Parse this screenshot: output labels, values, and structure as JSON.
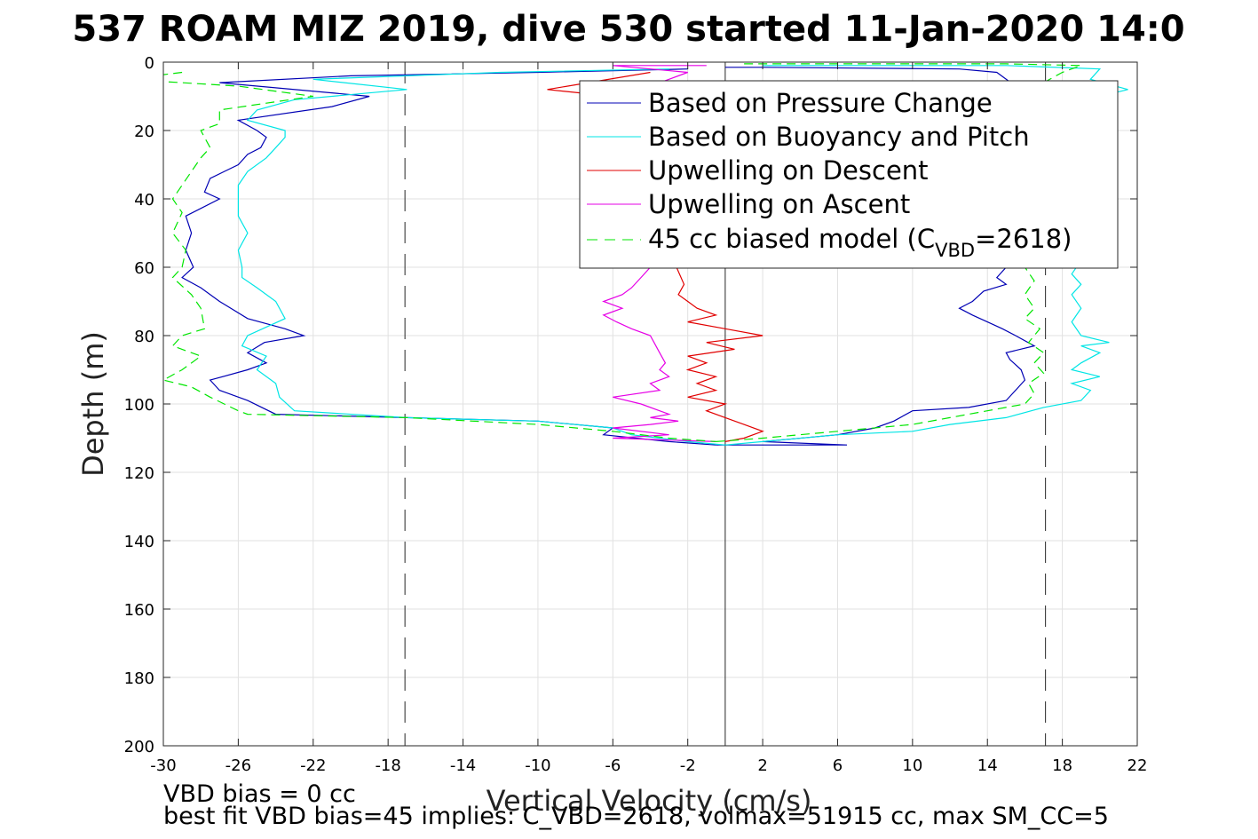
{
  "chart_data": {
    "type": "line",
    "title": "537 ROAM MIZ 2019, dive 530 started 11-Jan-2020 14:0",
    "xlabel": "Vertical Velocity (cm/s)",
    "ylabel": "Depth (m)",
    "xlim": [
      -30,
      22
    ],
    "ylim": [
      0,
      200
    ],
    "y_reversed": true,
    "grid": true,
    "legend_position": "top-right",
    "x_ticks": [
      "-30",
      "-26",
      "-22",
      "-18",
      "-14",
      "-10",
      "-6",
      "-2",
      "2",
      "6",
      "10",
      "14",
      "18",
      "22"
    ],
    "y_ticks": [
      "0",
      "20",
      "40",
      "60",
      "80",
      "100",
      "120",
      "140",
      "160",
      "180",
      "200"
    ],
    "legend": {
      "series1": "Based on Pressure Change",
      "series2": "Based on Buoyancy and Pitch",
      "series3": "Upwelling on Descent",
      "series4": "Upwelling on Ascent",
      "series5_prefix": "45 cc biased model (C",
      "series5_sub": "VBD",
      "series5_suffix": "=2618)"
    },
    "reference_lines": {
      "dashed_x": [
        -17.1,
        17.1
      ],
      "solid_x": [
        0
      ]
    },
    "notes": {
      "line1": "VBD bias = 0 cc",
      "line2": "best fit VBD bias=45 implies: C_VBD=2618, volmax=51915 cc, max SM_CC=5"
    },
    "series": [
      {
        "color": "#0000b4",
        "dash": false,
        "down": [
          [
            -2,
            2
          ],
          [
            -10,
            3
          ],
          [
            -20,
            4
          ],
          [
            -27,
            6
          ],
          [
            -19,
            10
          ],
          [
            -21,
            13
          ],
          [
            -26,
            17
          ],
          [
            -25,
            20
          ],
          [
            -24.5,
            22
          ],
          [
            -24.8,
            25
          ],
          [
            -25.5,
            27
          ],
          [
            -26,
            30
          ],
          [
            -27.5,
            34
          ],
          [
            -27.8,
            38
          ],
          [
            -27,
            40
          ],
          [
            -28.8,
            45
          ],
          [
            -28.5,
            50
          ],
          [
            -28.8,
            55
          ],
          [
            -28.4,
            60
          ],
          [
            -29,
            63
          ],
          [
            -28,
            66
          ],
          [
            -27,
            70
          ],
          [
            -25.5,
            75
          ],
          [
            -23.5,
            78
          ],
          [
            -22.5,
            80
          ],
          [
            -24.6,
            82
          ],
          [
            -25.5,
            85
          ],
          [
            -24.5,
            88
          ],
          [
            -25.5,
            90
          ],
          [
            -27.5,
            93
          ],
          [
            -27,
            96
          ],
          [
            -25.5,
            99
          ],
          [
            -24,
            103
          ],
          [
            -17,
            104
          ],
          [
            -10,
            105
          ],
          [
            -6,
            107
          ],
          [
            -6.5,
            109
          ],
          [
            -3,
            111
          ],
          [
            -0.5,
            112
          ]
        ],
        "up": [
          [
            -0.5,
            112
          ],
          [
            6.5,
            112
          ],
          [
            2,
            111
          ],
          [
            6,
            109
          ],
          [
            8,
            107
          ],
          [
            9,
            105
          ],
          [
            10,
            102
          ],
          [
            13,
            101
          ],
          [
            15,
            99
          ],
          [
            15.5,
            96
          ],
          [
            16,
            93
          ],
          [
            15.8,
            90
          ],
          [
            15.2,
            87
          ],
          [
            15,
            85
          ],
          [
            16.5,
            83
          ],
          [
            15.5,
            80
          ],
          [
            14.8,
            78
          ],
          [
            14,
            76
          ],
          [
            13.2,
            74
          ],
          [
            12.5,
            72
          ],
          [
            13.2,
            70
          ],
          [
            13.8,
            67
          ],
          [
            15,
            65
          ],
          [
            14.5,
            63
          ],
          [
            15,
            60
          ],
          [
            15.5,
            55
          ],
          [
            15,
            50
          ],
          [
            15.5,
            45
          ],
          [
            15.2,
            40
          ],
          [
            15.5,
            30
          ],
          [
            15.8,
            20
          ],
          [
            15.5,
            10
          ],
          [
            15.5,
            7
          ],
          [
            14.5,
            3
          ],
          [
            12.5,
            2
          ],
          [
            2,
            1.5
          ],
          [
            0,
            1.5
          ]
        ]
      },
      {
        "color": "#00e5e5",
        "dash": false,
        "down": [
          [
            -3,
            2
          ],
          [
            -12,
            3
          ],
          [
            -22,
            5
          ],
          [
            -17,
            8
          ],
          [
            -23,
            11
          ],
          [
            -25,
            14
          ],
          [
            -25.5,
            17
          ],
          [
            -23.5,
            20
          ],
          [
            -23.5,
            22
          ],
          [
            -24,
            25
          ],
          [
            -24.5,
            28
          ],
          [
            -25.5,
            32
          ],
          [
            -26,
            36
          ],
          [
            -26,
            40
          ],
          [
            -26,
            45
          ],
          [
            -25.5,
            50
          ],
          [
            -26,
            55
          ],
          [
            -25.8,
            60
          ],
          [
            -25.8,
            63
          ],
          [
            -25,
            66
          ],
          [
            -24,
            70
          ],
          [
            -23.5,
            75
          ],
          [
            -25.5,
            80
          ],
          [
            -25.8,
            83
          ],
          [
            -24.5,
            86
          ],
          [
            -25,
            90
          ],
          [
            -24,
            94
          ],
          [
            -23.8,
            98
          ],
          [
            -23,
            102
          ],
          [
            -17,
            104
          ],
          [
            -10,
            105
          ],
          [
            -6,
            107
          ],
          [
            -5,
            109
          ],
          [
            -2,
            111
          ],
          [
            0,
            112
          ]
        ],
        "up": [
          [
            0,
            112
          ],
          [
            2,
            111
          ],
          [
            6,
            109
          ],
          [
            10,
            108
          ],
          [
            12,
            106
          ],
          [
            15,
            104
          ],
          [
            17,
            101
          ],
          [
            19,
            99
          ],
          [
            19.5,
            96
          ],
          [
            18.5,
            94
          ],
          [
            20,
            92
          ],
          [
            18.5,
            90
          ],
          [
            19,
            88
          ],
          [
            20,
            85
          ],
          [
            19,
            83
          ],
          [
            20.5,
            82
          ],
          [
            19,
            80
          ],
          [
            18.5,
            76
          ],
          [
            19,
            72
          ],
          [
            18.5,
            68
          ],
          [
            19,
            65
          ],
          [
            18.5,
            62
          ],
          [
            19,
            58
          ],
          [
            19,
            54
          ],
          [
            18.5,
            50
          ],
          [
            19,
            46
          ],
          [
            18.5,
            40
          ],
          [
            19,
            35
          ],
          [
            18.5,
            30
          ],
          [
            19,
            25
          ],
          [
            18.5,
            20
          ],
          [
            19,
            15
          ],
          [
            20,
            10
          ],
          [
            21.5,
            8
          ],
          [
            19.5,
            5
          ],
          [
            20,
            2
          ],
          [
            15,
            1
          ],
          [
            2,
            1
          ]
        ]
      },
      {
        "color": "#e10000",
        "dash": false,
        "down": [
          [
            -4,
            3
          ],
          [
            -9.5,
            8
          ],
          [
            -6,
            10
          ],
          [
            -5.5,
            14
          ],
          [
            -5,
            18
          ],
          [
            -5,
            22
          ],
          [
            -4.5,
            25
          ],
          [
            -4,
            28
          ],
          [
            -3.5,
            32
          ],
          [
            -3.5,
            36
          ],
          [
            -3,
            40
          ],
          [
            -3.2,
            45
          ],
          [
            -2.8,
            50
          ],
          [
            -3,
            55
          ],
          [
            -2.6,
            60
          ],
          [
            -2.2,
            65
          ],
          [
            -2.5,
            68
          ],
          [
            -2,
            70
          ],
          [
            -1.5,
            72
          ],
          [
            -0.5,
            74
          ],
          [
            -2,
            76
          ],
          [
            0,
            78
          ],
          [
            2,
            80
          ],
          [
            -1,
            82
          ],
          [
            0.5,
            84
          ],
          [
            -2,
            86
          ],
          [
            -1,
            88
          ],
          [
            -2,
            90
          ],
          [
            -0.5,
            92
          ],
          [
            -1.5,
            94
          ],
          [
            -0.5,
            96
          ],
          [
            -2,
            98
          ],
          [
            0,
            100
          ],
          [
            -1,
            102
          ],
          [
            0,
            104
          ],
          [
            1,
            106
          ],
          [
            2,
            108
          ],
          [
            1,
            110
          ],
          [
            0,
            111
          ]
        ]
      },
      {
        "color": "#e600e6",
        "dash": false,
        "up": [
          [
            -0.5,
            111
          ],
          [
            -6,
            110
          ],
          [
            -3,
            109
          ],
          [
            -6,
            107
          ],
          [
            -4,
            106
          ],
          [
            -2.5,
            105
          ],
          [
            -4,
            104
          ],
          [
            -3,
            103
          ],
          [
            -3.5,
            102
          ],
          [
            -4.5,
            100
          ],
          [
            -6,
            98
          ],
          [
            -3.5,
            96
          ],
          [
            -4,
            94
          ],
          [
            -3,
            92
          ],
          [
            -3.5,
            90
          ],
          [
            -3.2,
            88
          ],
          [
            -3.5,
            85
          ],
          [
            -3.8,
            82
          ],
          [
            -4,
            80
          ],
          [
            -5,
            78
          ],
          [
            -5.8,
            76
          ],
          [
            -6.5,
            74
          ],
          [
            -5.5,
            72
          ],
          [
            -6.5,
            70
          ],
          [
            -5.5,
            68
          ],
          [
            -5,
            66
          ],
          [
            -4.5,
            63
          ],
          [
            -4,
            60
          ],
          [
            -4.5,
            55
          ],
          [
            -3.5,
            50
          ],
          [
            -4,
            45
          ],
          [
            -3,
            40
          ],
          [
            -3.5,
            35
          ],
          [
            -3,
            30
          ],
          [
            -3.5,
            25
          ],
          [
            -2.5,
            20
          ],
          [
            -3,
            15
          ],
          [
            -3,
            10
          ],
          [
            -4,
            7
          ],
          [
            -3,
            5
          ],
          [
            -2,
            3
          ],
          [
            -6,
            1
          ],
          [
            -1,
            1
          ]
        ]
      },
      {
        "color": "#00e600",
        "dash": true,
        "down": [
          [
            -29,
            3
          ],
          [
            -32,
            5
          ],
          [
            -26,
            7
          ],
          [
            -22,
            10
          ],
          [
            -27,
            14
          ],
          [
            -27,
            18
          ],
          [
            -28,
            20
          ],
          [
            -27.5,
            25
          ],
          [
            -28,
            28
          ],
          [
            -28.5,
            32
          ],
          [
            -29,
            36
          ],
          [
            -29.5,
            40
          ],
          [
            -29,
            44
          ],
          [
            -29.5,
            50
          ],
          [
            -28.8,
            55
          ],
          [
            -29,
            60
          ],
          [
            -29.5,
            63
          ],
          [
            -28.5,
            68
          ],
          [
            -28,
            72
          ],
          [
            -27.8,
            78
          ],
          [
            -29,
            80
          ],
          [
            -29.5,
            83
          ],
          [
            -28,
            86
          ],
          [
            -29,
            90
          ],
          [
            -30,
            93
          ],
          [
            -28.5,
            95
          ],
          [
            -27.5,
            98
          ],
          [
            -26,
            102
          ],
          [
            -25.5,
            103
          ],
          [
            -17,
            104
          ],
          [
            -10,
            106
          ],
          [
            -6,
            108
          ],
          [
            -3,
            110
          ],
          [
            -0.5,
            111
          ]
        ],
        "up": [
          [
            -0.5,
            111
          ],
          [
            2,
            110
          ],
          [
            6,
            108
          ],
          [
            10,
            106
          ],
          [
            12,
            104
          ],
          [
            14,
            102
          ],
          [
            16,
            100
          ],
          [
            16.5,
            97
          ],
          [
            16.2,
            94
          ],
          [
            17,
            91
          ],
          [
            16.5,
            88
          ],
          [
            17,
            85
          ],
          [
            16.2,
            82
          ],
          [
            16.8,
            78
          ],
          [
            16,
            75
          ],
          [
            16.5,
            72
          ],
          [
            16,
            68
          ],
          [
            16.5,
            64
          ],
          [
            16,
            60
          ],
          [
            16.5,
            55
          ],
          [
            16,
            50
          ],
          [
            16.5,
            45
          ],
          [
            16.2,
            40
          ],
          [
            16.5,
            35
          ],
          [
            16.5,
            30
          ],
          [
            16.5,
            25
          ],
          [
            16.8,
            20
          ],
          [
            17,
            15
          ],
          [
            17,
            10
          ],
          [
            17,
            6
          ],
          [
            18,
            3
          ],
          [
            19,
            1
          ],
          [
            15,
            0.5
          ],
          [
            1,
            0.5
          ]
        ]
      }
    ]
  }
}
